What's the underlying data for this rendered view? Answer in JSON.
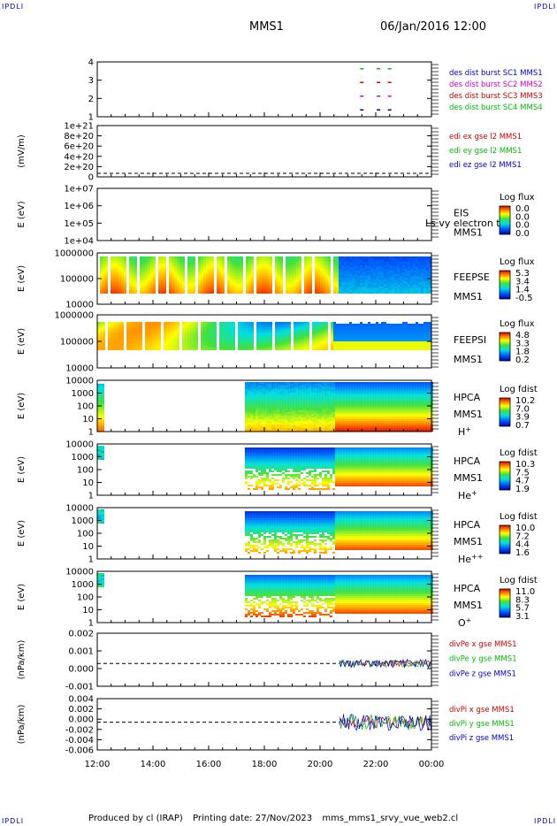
{
  "corner_label": "IPDLI",
  "header": {
    "spacecraft": "MMS1",
    "datetime": "06/Jan/2016 12:00"
  },
  "footer": {
    "producer": "Produced by cl (IRAP)",
    "printing": "Printing date: 27/Nov/2023",
    "script": "mms_mms1_srvy_vue_web2.cl"
  },
  "x_ticks": [
    "12:00",
    "14:00",
    "16:00",
    "18:00",
    "20:00",
    "22:00",
    "00:00"
  ],
  "chart_data": [
    {
      "type": "line",
      "panel": "burst",
      "yticks": [
        "4",
        "3",
        "2",
        "1"
      ],
      "ylim": [
        0.5,
        4.5
      ],
      "legend": [
        {
          "text": "des dist burst SC1 MMS1",
          "color": "#0000cc"
        },
        {
          "text": "des dist burst SC2 MMS2",
          "color": "#cc00cc"
        },
        {
          "text": "des dist burst SC3 MMS3",
          "color": "#cc0000"
        },
        {
          "text": "des dist burst SC4 MMS4",
          "color": "#00bb00"
        }
      ],
      "bursts": [
        {
          "x": 21.5,
          "y": [
            1,
            2,
            3,
            4
          ]
        },
        {
          "x": 22.1,
          "y": [
            1,
            2,
            3,
            4
          ]
        },
        {
          "x": 22.5,
          "y": [
            1,
            2,
            3,
            4
          ]
        }
      ]
    },
    {
      "type": "line",
      "panel": "edi",
      "ylabel": "(mV/m)",
      "yticks": [
        "1e+21",
        "8e+20",
        "6e+20",
        "4e+20",
        "2e+20",
        "0"
      ],
      "ylim": [
        0,
        1e+21
      ],
      "legend": [
        {
          "text": "edi ex gse l2 MMS1",
          "color": "#cc0000"
        },
        {
          "text": "edi ey gse l2 MMS1",
          "color": "#00bb00"
        },
        {
          "text": "edi ez gse l2 MMS1",
          "color": "#0000cc"
        }
      ]
    },
    {
      "type": "heatmap",
      "panel": "eis",
      "ylabel": "E (eV)",
      "yticks": [
        "1e+07",
        "1e+06",
        "1e+05",
        "1e+04"
      ],
      "side": [
        "EIS",
        "MMS1"
      ],
      "overlay": "Ls vy electron to",
      "cb_title": "Log flux",
      "cb_ticks": [
        "0.0",
        "0.0",
        "0.0",
        "0.0"
      ]
    },
    {
      "type": "heatmap",
      "panel": "feepse",
      "ylabel": "E (eV)",
      "yticks": [
        "1000000",
        "100000",
        "10000"
      ],
      "side": [
        "FEEPSE",
        "MMS1"
      ],
      "cb_title": "Log flux",
      "cb_ticks": [
        "5.3",
        "3.4",
        "1.4",
        "-0.5"
      ]
    },
    {
      "type": "heatmap",
      "panel": "feepsi",
      "ylabel": "E (eV)",
      "yticks": [
        "1000000",
        "100000",
        "10000"
      ],
      "side": [
        "FEEPSI",
        "MMS1"
      ],
      "cb_title": "Log flux",
      "cb_ticks": [
        "4.8",
        "3.3",
        "1.8",
        "0.2"
      ]
    },
    {
      "type": "heatmap",
      "panel": "hpca-h",
      "ylabel": "E (eV)",
      "yticks": [
        "10000",
        "1000",
        "100",
        "10",
        "1"
      ],
      "side": [
        "HPCA",
        "MMS1"
      ],
      "species": "H",
      "charge": "+",
      "cb_title": "Log fdist",
      "cb_ticks": [
        "10.2",
        "7.0",
        "3.9",
        "0.7"
      ]
    },
    {
      "type": "heatmap",
      "panel": "hpca-he",
      "ylabel": "E (eV)",
      "yticks": [
        "10000",
        "1000",
        "100",
        "10",
        "1"
      ],
      "side": [
        "HPCA",
        "MMS1"
      ],
      "species": "He",
      "charge": "+",
      "cb_title": "Log fdist",
      "cb_ticks": [
        "10.3",
        "7.5",
        "4.7",
        "1.9"
      ]
    },
    {
      "type": "heatmap",
      "panel": "hpca-he2",
      "ylabel": "E (eV)",
      "yticks": [
        "10000",
        "1000",
        "100",
        "10",
        "1"
      ],
      "side": [
        "HPCA",
        "MMS1"
      ],
      "species": "He",
      "charge": "++",
      "cb_title": "Log fdist",
      "cb_ticks": [
        "10.0",
        "7.2",
        "4.4",
        "1.6"
      ]
    },
    {
      "type": "heatmap",
      "panel": "hpca-o",
      "ylabel": "E (eV)",
      "yticks": [
        "10000",
        "1000",
        "100",
        "10",
        "1"
      ],
      "side": [
        "HPCA",
        "MMS1"
      ],
      "species": "O",
      "charge": "+",
      "cb_title": "Log fdist",
      "cb_ticks": [
        "11.0",
        "8.3",
        "5.7",
        "3.1"
      ]
    },
    {
      "type": "line",
      "panel": "divpe",
      "ylabel": "(nPa/km)",
      "yticks": [
        "0.002",
        "0.001",
        "0.000",
        "-0.001"
      ],
      "ylim": [
        -0.0015,
        0.002
      ],
      "legend": [
        {
          "text": "divPe x gse MMS1",
          "color": "#cc0000"
        },
        {
          "text": "divPe y gse MMS1",
          "color": "#00bb00"
        },
        {
          "text": "divPe z gse MMS1",
          "color": "#0000cc"
        }
      ]
    },
    {
      "type": "line",
      "panel": "divpi",
      "ylabel": "(nPa/km)",
      "yticks": [
        "0.004",
        "0.002",
        "0.000",
        "-0.002",
        "-0.004",
        "-0.006"
      ],
      "ylim": [
        -0.0065,
        0.0055
      ],
      "legend": [
        {
          "text": "divPi x gse MMS1",
          "color": "#cc0000"
        },
        {
          "text": "divPi y gse MMS1",
          "color": "#00bb00"
        },
        {
          "text": "divPi z gse MMS1",
          "color": "#0000cc"
        }
      ]
    }
  ]
}
